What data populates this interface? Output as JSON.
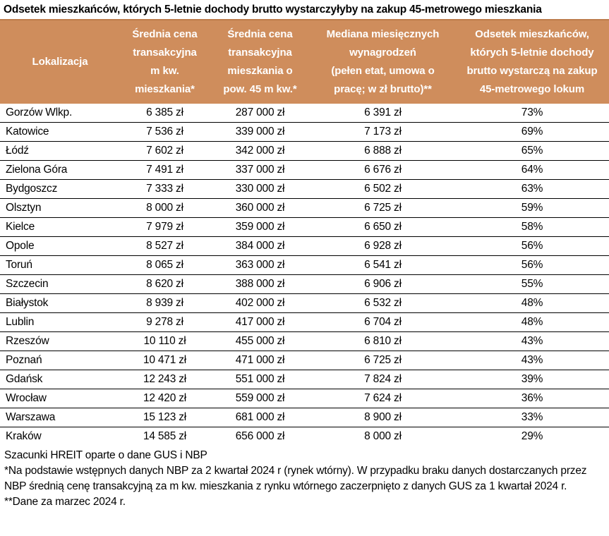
{
  "title": "Odsetek mieszkańców, których 5-letnie dochody brutto wystarczyłyby na zakup 45-metrowego mieszkania",
  "colors": {
    "header_bg": "#CF8D5C",
    "header_border": "#BC7B4B",
    "row_line": "#000000",
    "header_text": "#FFFFFF",
    "body_text": "#000000"
  },
  "table": {
    "headers": [
      "Lokalizacja",
      "Średnia cena\ntransakcyjna\nm kw.\nmieszkania*",
      "Średnia cena\ntransakcyjna\nmieszkania o\npow. 45 m kw.*",
      "Mediana miesięcznych\nwynagrodzeń\n(pełen etat, umowa o\npracę; w zł brutto)**",
      "Odsetek mieszkańców,\nktórych 5-letnie dochody\nbrutto wystarczą na zakup\n45-metrowego lokum"
    ],
    "fields": [
      "city",
      "price_sqm",
      "price_45sqm",
      "median_wage",
      "pct"
    ],
    "rows": [
      {
        "city": "Gorzów Wlkp.",
        "price_sqm": "6 385 zł",
        "price_45sqm": "287 000 zł",
        "median_wage": "6 391 zł",
        "pct": "73%"
      },
      {
        "city": "Katowice",
        "price_sqm": "7 536 zł",
        "price_45sqm": "339 000 zł",
        "median_wage": "7 173 zł",
        "pct": "69%"
      },
      {
        "city": "Łódź",
        "price_sqm": "7 602 zł",
        "price_45sqm": "342 000 zł",
        "median_wage": "6 888 zł",
        "pct": "65%"
      },
      {
        "city": "Zielona Góra",
        "price_sqm": "7 491 zł",
        "price_45sqm": "337 000 zł",
        "median_wage": "6 676 zł",
        "pct": "64%"
      },
      {
        "city": "Bydgoszcz",
        "price_sqm": "7 333 zł",
        "price_45sqm": "330 000 zł",
        "median_wage": "6 502 zł",
        "pct": "63%"
      },
      {
        "city": "Olsztyn",
        "price_sqm": "8 000 zł",
        "price_45sqm": "360 000 zł",
        "median_wage": "6 725 zł",
        "pct": "59%"
      },
      {
        "city": "Kielce",
        "price_sqm": "7 979 zł",
        "price_45sqm": "359 000 zł",
        "median_wage": "6 650 zł",
        "pct": "58%"
      },
      {
        "city": "Opole",
        "price_sqm": "8 527 zł",
        "price_45sqm": "384 000 zł",
        "median_wage": "6 928 zł",
        "pct": "56%"
      },
      {
        "city": "Toruń",
        "price_sqm": "8 065 zł",
        "price_45sqm": "363 000 zł",
        "median_wage": "6 541 zł",
        "pct": "56%"
      },
      {
        "city": "Szczecin",
        "price_sqm": "8 620 zł",
        "price_45sqm": "388 000 zł",
        "median_wage": "6 906 zł",
        "pct": "55%"
      },
      {
        "city": "Białystok",
        "price_sqm": "8 939 zł",
        "price_45sqm": "402 000 zł",
        "median_wage": "6 532 zł",
        "pct": "48%"
      },
      {
        "city": "Lublin",
        "price_sqm": "9 278 zł",
        "price_45sqm": "417 000 zł",
        "median_wage": "6 704 zł",
        "pct": "48%"
      },
      {
        "city": "Rzeszów",
        "price_sqm": "10 110 zł",
        "price_45sqm": "455 000 zł",
        "median_wage": "6 810 zł",
        "pct": "43%"
      },
      {
        "city": "Poznań",
        "price_sqm": "10 471 zł",
        "price_45sqm": "471 000 zł",
        "median_wage": "6 725 zł",
        "pct": "43%"
      },
      {
        "city": "Gdańsk",
        "price_sqm": "12 243 zł",
        "price_45sqm": "551 000 zł",
        "median_wage": "7 824 zł",
        "pct": "39%"
      },
      {
        "city": "Wrocław",
        "price_sqm": "12 420 zł",
        "price_45sqm": "559 000 zł",
        "median_wage": "7 624 zł",
        "pct": "36%"
      },
      {
        "city": "Warszawa",
        "price_sqm": "15 123 zł",
        "price_45sqm": "681 000 zł",
        "median_wage": "8 900 zł",
        "pct": "33%"
      },
      {
        "city": "Kraków",
        "price_sqm": "14 585 zł",
        "price_45sqm": "656 000 zł",
        "median_wage": "8 000 zł",
        "pct": "29%"
      }
    ]
  },
  "footnotes": [
    "Szacunki HREIT oparte o dane GUS i NBP",
    "*Na podstawie wstępnych danych NBP za 2 kwartał 2024 r (rynek wtórny). W przypadku braku danych dostarczanych przez NBP średnią cenę transakcyjną za m kw. mieszkania z rynku wtórnego zaczerpnięto z danych GUS za 1 kwartał 2024 r.",
    "**Dane za marzec 2024 r."
  ],
  "chart_data": {
    "type": "table",
    "title": "Odsetek mieszkańców, których 5-letnie dochody brutto wystarczyłyby na zakup 45-metrowego mieszkania",
    "columns": [
      "Lokalizacja",
      "Średnia cena transakcyjna m kw. mieszkania* (zł)",
      "Średnia cena transakcyjna mieszkania o pow. 45 m kw.* (zł)",
      "Mediana miesięcznych wynagrodzeń (pełen etat, umowa o pracę; w zł brutto)**",
      "Odsetek mieszkańców, których 5-letnie dochody brutto wystarczą na zakup 45-metrowego lokum (%)"
    ],
    "rows": [
      [
        "Gorzów Wlkp.",
        6385,
        287000,
        6391,
        73
      ],
      [
        "Katowice",
        7536,
        339000,
        7173,
        69
      ],
      [
        "Łódź",
        7602,
        342000,
        6888,
        65
      ],
      [
        "Zielona Góra",
        7491,
        337000,
        6676,
        64
      ],
      [
        "Bydgoszcz",
        7333,
        330000,
        6502,
        63
      ],
      [
        "Olsztyn",
        8000,
        360000,
        6725,
        59
      ],
      [
        "Kielce",
        7979,
        359000,
        6650,
        58
      ],
      [
        "Opole",
        8527,
        384000,
        6928,
        56
      ],
      [
        "Toruń",
        8065,
        363000,
        6541,
        56
      ],
      [
        "Szczecin",
        8620,
        388000,
        6906,
        55
      ],
      [
        "Białystok",
        8939,
        402000,
        6532,
        48
      ],
      [
        "Lublin",
        9278,
        417000,
        6704,
        48
      ],
      [
        "Rzeszów",
        10110,
        455000,
        6810,
        43
      ],
      [
        "Poznań",
        10471,
        471000,
        6725,
        43
      ],
      [
        "Gdańsk",
        12243,
        551000,
        7824,
        39
      ],
      [
        "Wrocław",
        12420,
        559000,
        7624,
        36
      ],
      [
        "Warszawa",
        15123,
        681000,
        8900,
        33
      ],
      [
        "Kraków",
        14585,
        656000,
        8000,
        29
      ]
    ],
    "source": "Szacunki HREIT oparte o dane GUS i NBP"
  }
}
